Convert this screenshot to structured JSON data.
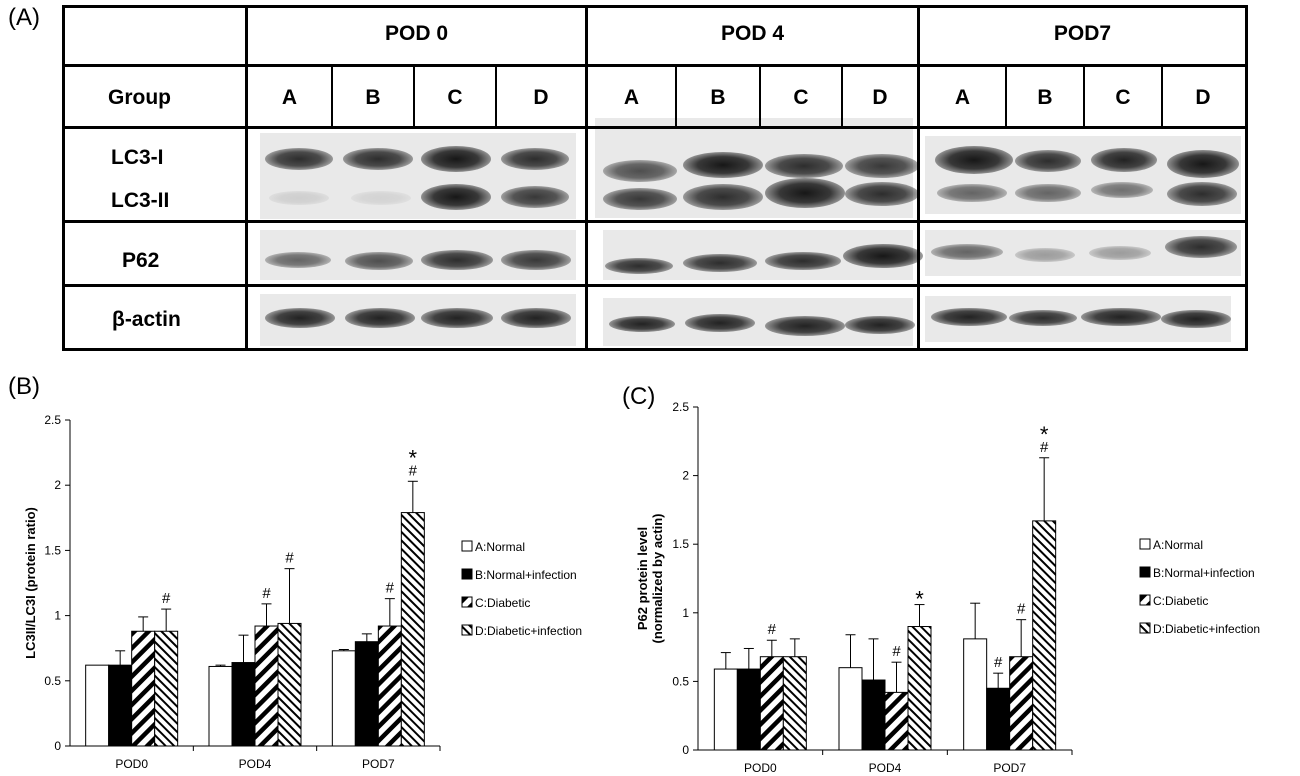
{
  "panel_labels": {
    "a": "(A)",
    "b": "(B)",
    "c": "(C)"
  },
  "blot": {
    "group_label": "Group",
    "timepoints": [
      "POD 0",
      "POD 4",
      "POD7"
    ],
    "lanes": [
      "A",
      "B",
      "C",
      "D"
    ],
    "rows": [
      "LC3-I",
      "LC3-II",
      "P62",
      "β-actin"
    ]
  },
  "chart_data": [
    {
      "type": "bar",
      "panel": "(B)",
      "ylabel": "LC3II/LC3I (protein ratio)",
      "ylim": [
        0,
        2.5
      ],
      "yticks": [
        "0",
        "0.5",
        "1",
        "1.5",
        "2",
        "2.5"
      ],
      "categories": [
        "POD0",
        "POD4",
        "POD7"
      ],
      "series": [
        {
          "name": "A:Normal",
          "pattern": "white",
          "values": [
            0.62,
            0.61,
            0.73
          ],
          "errors": [
            0,
            0.01,
            0.01
          ]
        },
        {
          "name": "B:Normal+infection",
          "pattern": "black",
          "values": [
            0.62,
            0.64,
            0.8
          ],
          "errors": [
            0.11,
            0.21,
            0.06
          ]
        },
        {
          "name": "C:Diabetic",
          "pattern": "wide-hatch",
          "values": [
            0.88,
            0.92,
            0.92
          ],
          "errors": [
            0.11,
            0.17,
            0.21
          ]
        },
        {
          "name": "D:Diabetic+infection",
          "pattern": "fine-hatch",
          "values": [
            0.88,
            0.94,
            1.79
          ],
          "errors": [
            0.17,
            0.42,
            0.24
          ]
        }
      ],
      "annotations": [
        {
          "category": "POD0",
          "series": 3,
          "text": "#"
        },
        {
          "category": "POD4",
          "series": 2,
          "text": "#"
        },
        {
          "category": "POD4",
          "series": 3,
          "text": "#"
        },
        {
          "category": "POD7",
          "series": 2,
          "text": "#"
        },
        {
          "category": "POD7",
          "series": 3,
          "text": "#"
        },
        {
          "category": "POD7",
          "series": 3,
          "text": "*"
        }
      ],
      "legend_position": "right",
      "grid": false
    },
    {
      "type": "bar",
      "panel": "(C)",
      "ylabel": "P62 protein level (normalized by actin)",
      "ylabel_lines": [
        "P62 protein level",
        "(normalized by actin)"
      ],
      "ylim": [
        0,
        2.5
      ],
      "yticks": [
        "0",
        "0.5",
        "1",
        "1.5",
        "2",
        "2.5"
      ],
      "categories": [
        "POD0",
        "POD4",
        "POD7"
      ],
      "series": [
        {
          "name": "A:Normal",
          "pattern": "white",
          "values": [
            0.59,
            0.6,
            0.81
          ],
          "errors": [
            0.12,
            0.24,
            0.26
          ]
        },
        {
          "name": "B:Normal+infection",
          "pattern": "black",
          "values": [
            0.59,
            0.51,
            0.45
          ],
          "errors": [
            0.15,
            0.3,
            0.11
          ]
        },
        {
          "name": "C:Diabetic",
          "pattern": "wide-hatch",
          "values": [
            0.68,
            0.42,
            0.68
          ],
          "errors": [
            0.12,
            0.22,
            0.27
          ]
        },
        {
          "name": "D:Diabetic+infection",
          "pattern": "fine-hatch",
          "values": [
            0.68,
            0.9,
            1.67
          ],
          "errors": [
            0.13,
            0.16,
            0.46
          ]
        }
      ],
      "annotations": [
        {
          "category": "POD0",
          "series": 2,
          "text": "#"
        },
        {
          "category": "POD4",
          "series": 2,
          "text": "#"
        },
        {
          "category": "POD4",
          "series": 3,
          "text": "*"
        },
        {
          "category": "POD7",
          "series": 1,
          "text": "#"
        },
        {
          "category": "POD7",
          "series": 2,
          "text": "#"
        },
        {
          "category": "POD7",
          "series": 3,
          "text": "#"
        },
        {
          "category": "POD7",
          "series": 3,
          "text": "*"
        }
      ],
      "legend_position": "right",
      "grid": false
    }
  ]
}
